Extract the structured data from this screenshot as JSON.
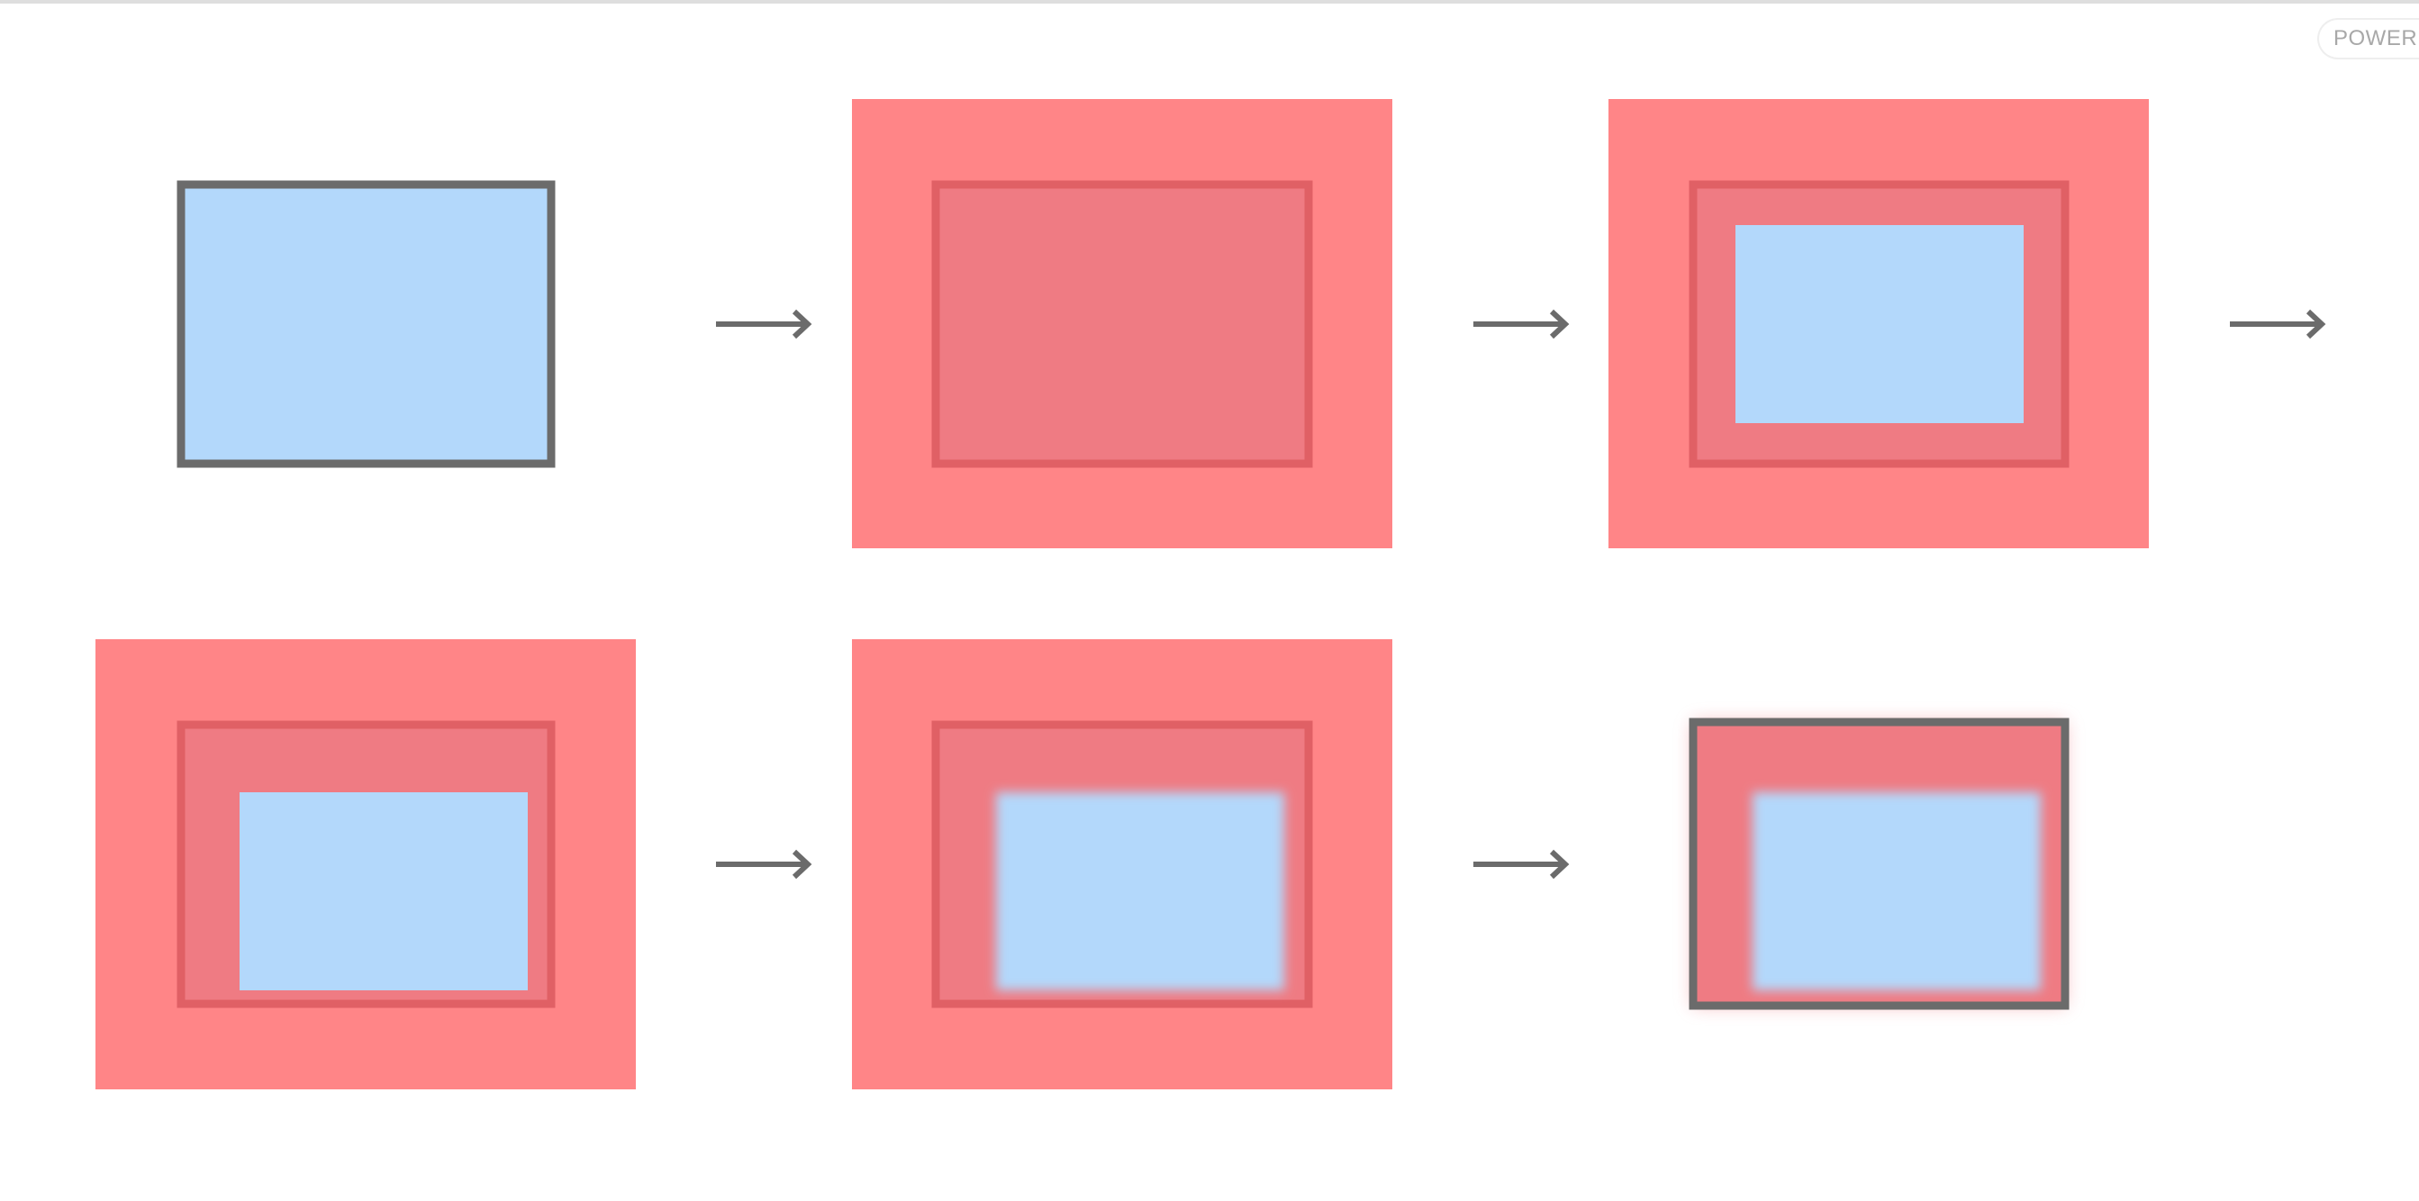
{
  "badge": {
    "text": "POWERED"
  },
  "colors": {
    "background": "#ffffff",
    "content_fill": "#b3d8fb",
    "border_dark": "#6b6b6b",
    "bleed_fill": "#ff8587",
    "overlay_fill": "#ef7b83",
    "overlay_border": "#e06065",
    "arrow": "#6b6b6b"
  },
  "diagram": {
    "rows": 2,
    "steps": [
      {
        "name": "original-box",
        "layers": [
          "content",
          "border"
        ]
      },
      {
        "name": "bleed-with-overlay",
        "layers": [
          "bleed",
          "overlay"
        ]
      },
      {
        "name": "bleed-with-content",
        "layers": [
          "bleed",
          "overlay",
          "content"
        ]
      },
      {
        "name": "bleed-with-shifted-content",
        "layers": [
          "bleed",
          "overlay",
          "content-shifted"
        ]
      },
      {
        "name": "bleed-with-blurred-content",
        "layers": [
          "bleed",
          "overlay",
          "content-blurred"
        ]
      },
      {
        "name": "final-composited-box",
        "layers": [
          "overlay",
          "content-blurred",
          "border"
        ]
      }
    ],
    "arrows": 5
  }
}
